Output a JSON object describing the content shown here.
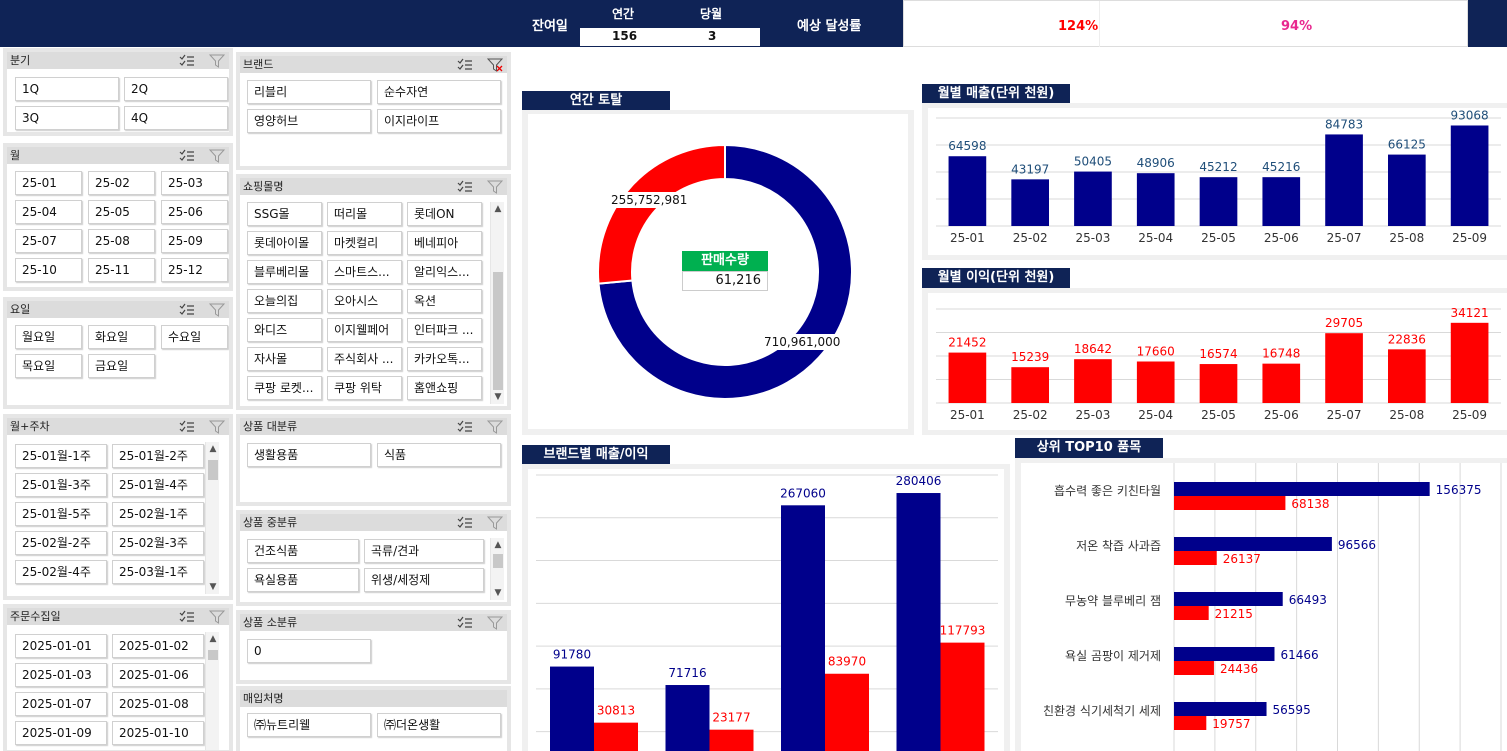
{
  "top": {
    "remaining_label": "잔여일",
    "annual_label": "연간",
    "monthly_label": "당월",
    "annual_value": "156",
    "monthly_value": "3",
    "achievement_label": "예상 달성률",
    "achievement_annual": "124%",
    "achievement_monthly": "94%"
  },
  "slicers": {
    "quarter": {
      "title": "분기",
      "items": [
        "1Q",
        "2Q",
        "3Q",
        "4Q"
      ]
    },
    "month": {
      "title": "월",
      "items": [
        "25-01",
        "25-02",
        "25-03",
        "25-04",
        "25-05",
        "25-06",
        "25-07",
        "25-08",
        "25-09",
        "25-10",
        "25-11",
        "25-12"
      ]
    },
    "weekday": {
      "title": "요일",
      "items": [
        "월요일",
        "화요일",
        "수요일",
        "목요일",
        "금요일"
      ]
    },
    "monthweek": {
      "title": "월+주차",
      "items": [
        "25-01월-1주",
        "25-01월-2주",
        "25-01월-3주",
        "25-01월-4주",
        "25-01월-5주",
        "25-02월-1주",
        "25-02월-2주",
        "25-02월-3주",
        "25-02월-4주",
        "25-03월-1주"
      ]
    },
    "orderdate": {
      "title": "주문수집일",
      "items": [
        "2025-01-01",
        "2025-01-02",
        "2025-01-03",
        "2025-01-06",
        "2025-01-07",
        "2025-01-08",
        "2025-01-09",
        "2025-01-10"
      ]
    },
    "brand": {
      "title": "브랜드",
      "items": [
        "리블리",
        "순수자연",
        "영양허브",
        "이지라이프"
      ]
    },
    "mall": {
      "title": "쇼핑몰명",
      "items": [
        "SSG몰",
        "떠리몰",
        "롯데ON",
        "롯데아이몰",
        "마켓컬리",
        "베네피아",
        "블루베리몰",
        "스마트스...",
        "알리익스...",
        "오늘의집",
        "오아시스",
        "옥션",
        "와디즈",
        "이지웰페어",
        "인터파크 ...",
        "자사몰",
        "주식회사 ...",
        "카카오톡...",
        "쿠팡 로켓...",
        "쿠팡 위탁",
        "홈앤쇼핑"
      ]
    },
    "cat_large": {
      "title": "상품 대분류",
      "items": [
        "생활용품",
        "식품"
      ]
    },
    "cat_mid": {
      "title": "상품 중분류",
      "items": [
        "건조식품",
        "곡류/견과",
        "욕실용품",
        "위생/세정제"
      ]
    },
    "cat_small": {
      "title": "상품 소분류",
      "items": [
        "0"
      ]
    },
    "vendor": {
      "title": "매입처명",
      "items": [
        "㈜뉴트리웰",
        "㈜더온생활"
      ]
    }
  },
  "donut": {
    "title": "연간 토탈",
    "center_label": "판매수량",
    "center_value": "61,216",
    "label_red": "255,752,981",
    "label_blue": "710,961,000",
    "colors": {
      "blue": "#00008b",
      "red": "#ff0000",
      "green": "#00b050"
    }
  },
  "monthly_sales": {
    "title": "월별 매출(단위 천원)"
  },
  "monthly_profit": {
    "title": "월별 이익(단위 천원)"
  },
  "brand_chart": {
    "title": "브랜드별 매출/이익"
  },
  "top10": {
    "title": "상위 TOP10 품목"
  },
  "chart_data": [
    {
      "type": "bar",
      "name_ref": "monthly_sales",
      "categories": [
        "25-01",
        "25-02",
        "25-03",
        "25-04",
        "25-05",
        "25-06",
        "25-07",
        "25-08",
        "25-09"
      ],
      "values": [
        64598,
        43197,
        50405,
        48906,
        45212,
        45216,
        84783,
        66125,
        93068
      ],
      "color": "#00008b",
      "grid": true
    },
    {
      "type": "bar",
      "name_ref": "monthly_profit",
      "categories": [
        "25-01",
        "25-02",
        "25-03",
        "25-04",
        "25-05",
        "25-06",
        "25-07",
        "25-08",
        "25-09"
      ],
      "values": [
        21452,
        15239,
        18642,
        17660,
        16574,
        16748,
        29705,
        22836,
        34121
      ],
      "color": "#ff0000",
      "grid": true
    },
    {
      "type": "bar",
      "name_ref": "brand_chart",
      "series": [
        {
          "values": [
            91780,
            71716,
            267060,
            280406
          ],
          "color": "#00008b"
        },
        {
          "values": [
            30813,
            23177,
            83970,
            117793
          ],
          "color": "#ff0000"
        }
      ],
      "grid": true
    },
    {
      "type": "bar",
      "orientation": "horizontal",
      "name_ref": "top10",
      "categories": [
        "흡수력 좋은 키친타월",
        "저온 착즙 사과즙",
        "무농약 블루베리 잼",
        "욕실 곰팡이 제거제",
        "친환경 식기세척기 세제"
      ],
      "series": [
        {
          "values": [
            156375,
            96566,
            66493,
            61466,
            56595
          ],
          "color": "#00008b"
        },
        {
          "values": [
            68138,
            26137,
            21215,
            24436,
            19757
          ],
          "color": "#ff0000"
        }
      ],
      "grid": true
    },
    {
      "type": "pie",
      "name_ref": "donut",
      "values": [
        710961000,
        255752981
      ],
      "colors": [
        "#00008b",
        "#ff0000"
      ]
    }
  ]
}
